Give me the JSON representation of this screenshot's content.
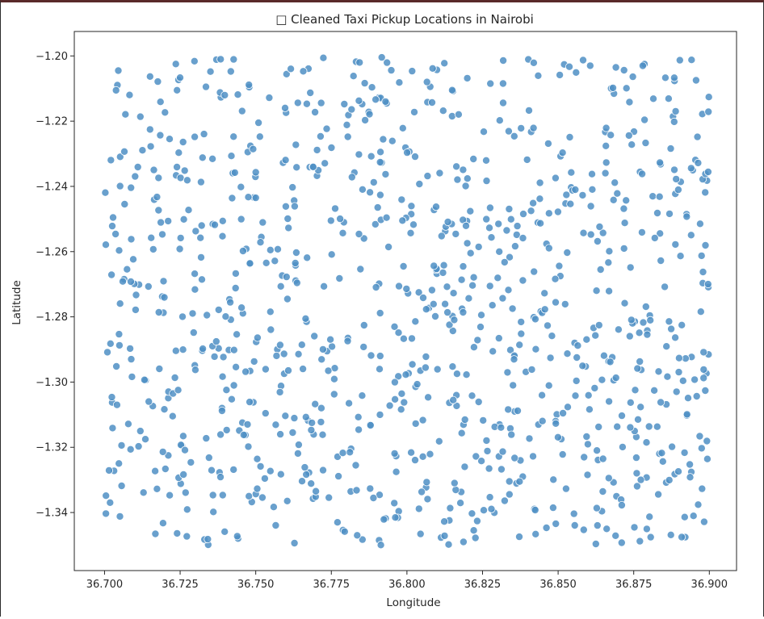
{
  "chart_data": {
    "type": "scatter",
    "title": "□ Cleaned Taxi Pickup Locations in Nairobi",
    "xlabel": "Longitude",
    "ylabel": "Latitude",
    "xlim": [
      36.69,
      36.909
    ],
    "ylim": [
      -1.3578,
      -1.1925
    ],
    "xticks": [
      "36.700",
      "36.725",
      "36.750",
      "36.775",
      "36.800",
      "36.825",
      "36.850",
      "36.875",
      "36.900"
    ],
    "yticks": [
      "−1.20",
      "−1.22",
      "−1.24",
      "−1.26",
      "−1.28",
      "−1.30",
      "−1.32",
      "−1.34"
    ],
    "xtick_values": [
      36.7,
      36.725,
      36.75,
      36.775,
      36.8,
      36.825,
      36.85,
      36.875,
      36.9
    ],
    "ytick_values": [
      -1.2,
      -1.22,
      -1.24,
      -1.26,
      -1.28,
      -1.3,
      -1.32,
      -1.34
    ],
    "grid": false,
    "marker_color": "#4f8fc4",
    "marker_edge": "#ffffff",
    "points": {
      "note_count_approx": 1000,
      "lon_range": [
        36.7,
        36.9
      ],
      "lat_range": [
        -1.35,
        -1.2
      ]
    }
  }
}
